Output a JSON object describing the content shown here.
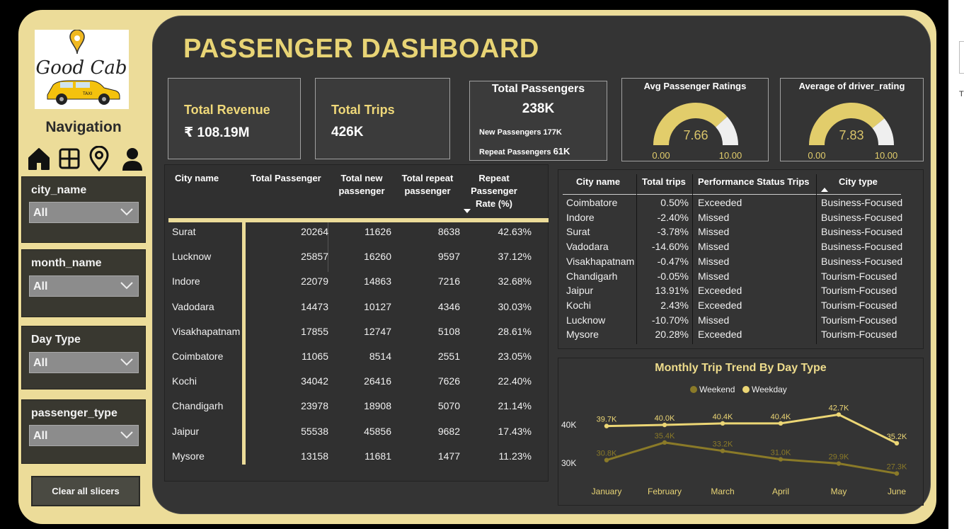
{
  "logo": {
    "text_line1": "Good Cab",
    "car_text": "TAXI"
  },
  "nav": {
    "title": "Navigation",
    "icons": [
      "home-icon",
      "grid-icon",
      "location-icon",
      "user-icon"
    ]
  },
  "slicers": [
    {
      "label": "city_name",
      "value": "All"
    },
    {
      "label": "month_name",
      "value": "All"
    },
    {
      "label": "Day Type",
      "value": "All"
    },
    {
      "label": "passenger_type",
      "value": "All"
    }
  ],
  "clear_label": "Clear all slicers",
  "title": "PASSENGER DASHBOARD",
  "kpis": {
    "revenue": {
      "label": "Total Revenue",
      "value": "₹ 108.19M"
    },
    "trips": {
      "label": "Total Trips",
      "value": "426K"
    },
    "passengers": {
      "label": "Total Passengers",
      "value": "238K",
      "new_label": "New Passengers",
      "new_value": "177K",
      "repeat_label": "Repeat Passengers",
      "repeat_value": "61K"
    }
  },
  "gauges": [
    {
      "title": "Avg Passenger Ratings",
      "value": 7.66,
      "value_label": "7.66",
      "min": "0.00",
      "max": "10.00"
    },
    {
      "title": "Average of driver_rating",
      "value": 7.83,
      "value_label": "7.83",
      "min": "0.00",
      "max": "10.00"
    }
  ],
  "table1": {
    "headers": [
      "City name",
      "Total Passenger",
      "Total new passenger",
      "Total repeat passenger",
      "Repeat Passenger Rate (%)"
    ],
    "rows": [
      [
        "Surat",
        "20264",
        "11626",
        "8638",
        "42.63%"
      ],
      [
        "Lucknow",
        "25857",
        "16260",
        "9597",
        "37.12%"
      ],
      [
        "Indore",
        "22079",
        "14863",
        "7216",
        "32.68%"
      ],
      [
        "Vadodara",
        "14473",
        "10127",
        "4346",
        "30.03%"
      ],
      [
        "Visakhapatnam",
        "17855",
        "12747",
        "5108",
        "28.61%"
      ],
      [
        "Coimbatore",
        "11065",
        "8514",
        "2551",
        "23.05%"
      ],
      [
        "Kochi",
        "34042",
        "26416",
        "7626",
        "22.40%"
      ],
      [
        "Chandigarh",
        "23978",
        "18908",
        "5070",
        "21.14%"
      ],
      [
        "Jaipur",
        "55538",
        "45856",
        "9682",
        "17.43%"
      ],
      [
        "Mysore",
        "13158",
        "11681",
        "1477",
        "11.23%"
      ]
    ]
  },
  "table2": {
    "headers": [
      "City name",
      "Total trips",
      "Performance Status Trips",
      "City type"
    ],
    "rows": [
      [
        "Coimbatore",
        "0.50%",
        "Exceeded",
        "Business-Focused"
      ],
      [
        "Indore",
        "-2.40%",
        "Missed",
        "Business-Focused"
      ],
      [
        "Surat",
        "-3.78%",
        "Missed",
        "Business-Focused"
      ],
      [
        "Vadodara",
        "-14.60%",
        "Missed",
        "Business-Focused"
      ],
      [
        "Visakhapatnam",
        "-0.47%",
        "Missed",
        "Business-Focused"
      ],
      [
        "Chandigarh",
        "-0.05%",
        "Missed",
        "Tourism-Focused"
      ],
      [
        "Jaipur",
        "13.91%",
        "Exceeded",
        "Tourism-Focused"
      ],
      [
        "Kochi",
        "2.43%",
        "Exceeded",
        "Tourism-Focused"
      ],
      [
        "Lucknow",
        "-10.70%",
        "Missed",
        "Tourism-Focused"
      ],
      [
        "Mysore",
        "20.28%",
        "Exceeded",
        "Tourism-Focused"
      ]
    ]
  },
  "chart_data": {
    "type": "line",
    "title": "Monthly Trip Trend By Day Type",
    "categories": [
      "January",
      "February",
      "March",
      "April",
      "May",
      "June"
    ],
    "series": [
      {
        "name": "Weekend",
        "color": "#8a7a28",
        "values": [
          30800,
          35400,
          33200,
          31000,
          29900,
          27300
        ],
        "labels": [
          "30.8K",
          "35.4K",
          "33.2K",
          "31.0K",
          "29.9K",
          "27.3K"
        ]
      },
      {
        "name": "Weekday",
        "color": "#ecd675",
        "values": [
          39700,
          40000,
          40400,
          40400,
          42700,
          35200
        ],
        "labels": [
          "39.7K",
          "40.0K",
          "40.4K",
          "40.4K",
          "42.7K",
          "35.2K"
        ]
      }
    ],
    "y_ticks": [
      {
        "value": 40000,
        "label": "40K"
      },
      {
        "value": 30000,
        "label": "30K"
      }
    ],
    "legend": "top-center"
  },
  "colors": {
    "accent": "#e8d475",
    "frame": "#ecdc99",
    "panel": "#343434"
  }
}
